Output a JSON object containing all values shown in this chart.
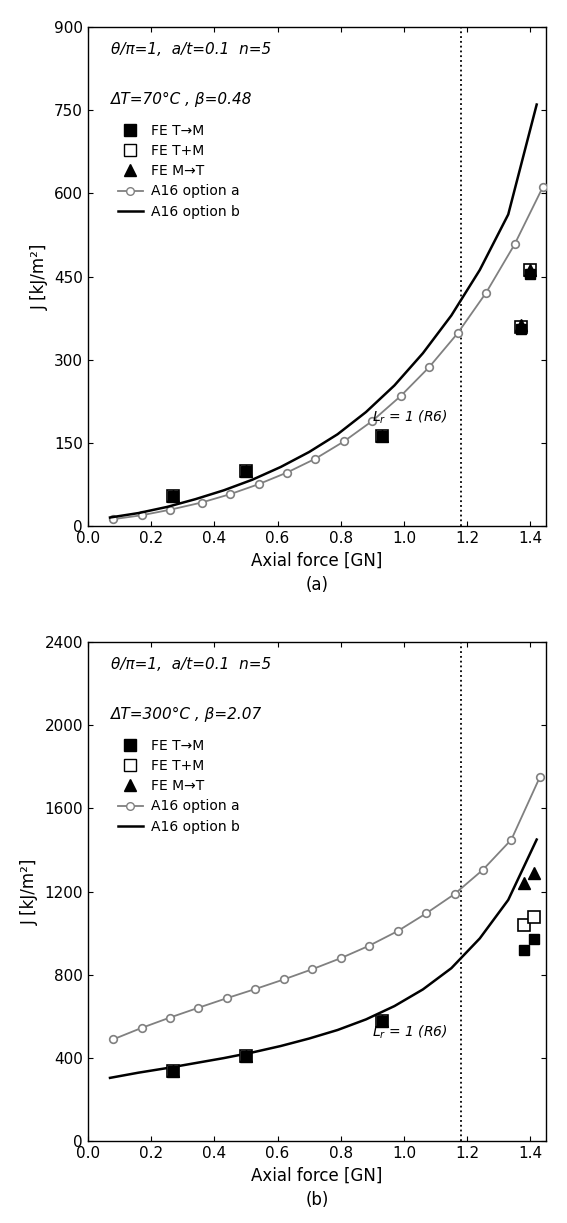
{
  "plot_a": {
    "title_line1": "θ/π=1,  a/t=0.1  n=5",
    "title_line2": "ΔT=70°C , β=0.48",
    "ylabel": "J [kJ/m²]",
    "xlabel": "Axial force [GN]",
    "ylim": [
      0,
      900
    ],
    "xlim": [
      0.0,
      1.45
    ],
    "yticks": [
      0,
      150,
      300,
      450,
      600,
      750,
      900
    ],
    "xticks": [
      0.0,
      0.2,
      0.4,
      0.6,
      0.8,
      1.0,
      1.2,
      1.4
    ],
    "vline_x": 1.18,
    "option_a_x": [
      0.08,
      0.17,
      0.26,
      0.36,
      0.45,
      0.54,
      0.63,
      0.72,
      0.81,
      0.9,
      0.99,
      1.08,
      1.17,
      1.26,
      1.35,
      1.44
    ],
    "option_a_y": [
      13,
      20,
      30,
      43,
      58,
      76,
      97,
      122,
      153,
      190,
      235,
      287,
      348,
      421,
      508,
      612
    ],
    "option_b_x": [
      0.07,
      0.16,
      0.25,
      0.34,
      0.43,
      0.52,
      0.61,
      0.7,
      0.79,
      0.88,
      0.97,
      1.06,
      1.15,
      1.24,
      1.33,
      1.42
    ],
    "option_b_y": [
      16,
      24,
      35,
      49,
      65,
      84,
      107,
      134,
      166,
      206,
      254,
      312,
      380,
      462,
      562,
      760
    ],
    "fe_TtoM_x": [
      0.27,
      0.5,
      0.93,
      1.37,
      1.4
    ],
    "fe_TtoM_y": [
      55,
      100,
      162,
      355,
      455
    ],
    "fe_TplusM_x": [
      0.27,
      0.5,
      0.93,
      1.37,
      1.4
    ],
    "fe_TplusM_y": [
      55,
      100,
      162,
      355,
      455
    ],
    "fe_MtoT_x": [
      0.27,
      0.5,
      0.93,
      1.37,
      1.4
    ],
    "fe_MtoT_y": [
      55,
      100,
      162,
      355,
      462
    ],
    "label_a": "(a)"
  },
  "plot_b": {
    "title_line1": "θ/π=1,  a/t=0.1  n=5",
    "title_line2": "ΔT=300°C , β=2.07",
    "ylabel": "J [kJ/m²]",
    "xlabel": "Axial force [GN]",
    "ylim": [
      0,
      2400
    ],
    "xlim": [
      0.0,
      1.45
    ],
    "yticks": [
      0,
      400,
      800,
      1200,
      1600,
      2000,
      2400
    ],
    "xticks": [
      0.0,
      0.2,
      0.4,
      0.6,
      0.8,
      1.0,
      1.2,
      1.4
    ],
    "vline_x": 1.18,
    "option_a_x": [
      0.08,
      0.17,
      0.26,
      0.35,
      0.44,
      0.53,
      0.62,
      0.71,
      0.8,
      0.89,
      0.98,
      1.07,
      1.16,
      1.25,
      1.34,
      1.43
    ],
    "option_a_y": [
      490,
      545,
      595,
      642,
      688,
      732,
      778,
      827,
      880,
      940,
      1010,
      1095,
      1188,
      1305,
      1450,
      1750
    ],
    "option_b_x": [
      0.07,
      0.16,
      0.25,
      0.34,
      0.43,
      0.52,
      0.61,
      0.7,
      0.79,
      0.88,
      0.97,
      1.06,
      1.15,
      1.24,
      1.33,
      1.42
    ],
    "option_b_y": [
      305,
      330,
      352,
      376,
      400,
      427,
      458,
      494,
      535,
      586,
      650,
      730,
      832,
      975,
      1160,
      1450
    ],
    "fe_TtoM_x": [
      0.27,
      0.5,
      0.93,
      1.38,
      1.41
    ],
    "fe_TtoM_y": [
      340,
      410,
      580,
      920,
      1000
    ],
    "fe_TplusM_x": [
      0.27,
      0.5,
      0.93,
      1.38,
      1.41
    ],
    "fe_TplusM_y": [
      340,
      410,
      580,
      1050,
      1100
    ],
    "fe_MtoT_x": [
      0.27,
      0.5,
      0.93,
      1.38,
      1.41
    ],
    "fe_MtoT_y": [
      340,
      410,
      580,
      1260,
      1300
    ],
    "label_b": "(b)"
  },
  "legend_entries": [
    "FE T→M",
    "FE T+M",
    "FE M→T",
    "A16 option a",
    "A16 option b"
  ],
  "option_a_color": "#808080",
  "option_b_color": "#000000",
  "fe_color": "#000000",
  "background_color": "#ffffff"
}
